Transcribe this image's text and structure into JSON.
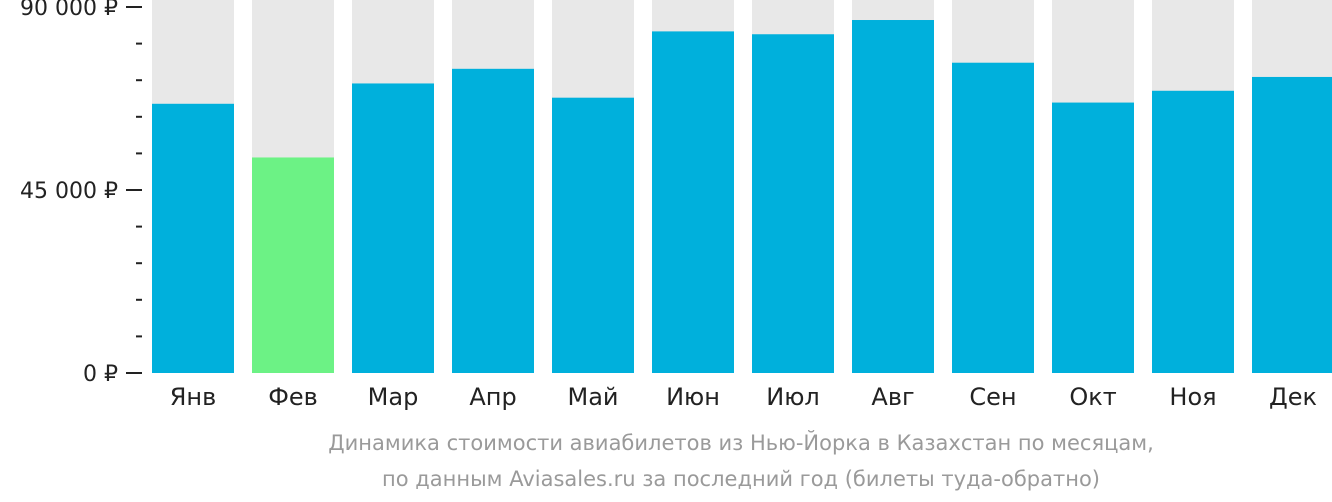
{
  "chart_data": {
    "type": "bar",
    "categories": [
      "Янв",
      "Фев",
      "Мар",
      "Апр",
      "Май",
      "Июн",
      "Июл",
      "Авг",
      "Сен",
      "Окт",
      "Ноя",
      "Дек"
    ],
    "values": [
      66200,
      53000,
      71200,
      74800,
      67700,
      84000,
      83300,
      86800,
      76300,
      66500,
      69400,
      72800
    ],
    "ylim": [
      0,
      90000
    ],
    "yticks": [
      {
        "value": 0,
        "label": "0 ₽"
      },
      {
        "value": 45000,
        "label": "45 000 ₽"
      },
      {
        "value": 90000,
        "label": "90 000 ₽"
      }
    ],
    "minor_tick_step": 9000,
    "highlight_index": 1,
    "colors": {
      "bar": "#00b0dc",
      "highlight": "#6cf285",
      "background_bar": "#e8e8e8",
      "axis": "#222222"
    }
  },
  "caption": {
    "line1": "Динамика стоимости авиабилетов из Нью-Йорка в Казахстан по месяцам,",
    "line2": "по данным Aviasales.ru за последний год (билеты туда-обратно)"
  }
}
